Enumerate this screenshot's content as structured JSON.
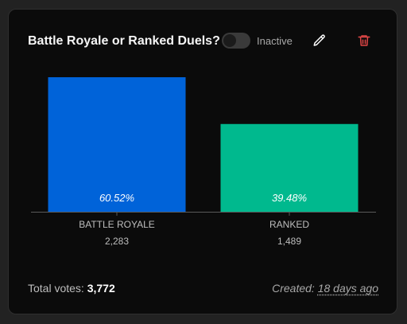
{
  "poll": {
    "title": "Battle Royale or Ranked Duels?",
    "toggle_label": "Inactive",
    "toggle_on": false,
    "edit_icon": "pencil-icon",
    "delete_icon": "trash-icon",
    "total_label": "Total votes:",
    "total_value": "3,772",
    "created_label": "Created:",
    "created_value": "18 days ago"
  },
  "colors": {
    "battle_royale": "#0063d9",
    "ranked": "#00b98e",
    "delete_icon": "#e04646"
  },
  "chart_data": {
    "type": "bar",
    "categories": [
      "BATTLE ROYALE",
      "RANKED"
    ],
    "values": [
      2283,
      1489
    ],
    "value_labels": [
      "2,283",
      "1,489"
    ],
    "percent_labels": [
      "60.52%",
      "39.48%"
    ],
    "ylim": [
      0,
      2283
    ],
    "grid": false,
    "colors": [
      "#0063d9",
      "#00b98e"
    ]
  }
}
